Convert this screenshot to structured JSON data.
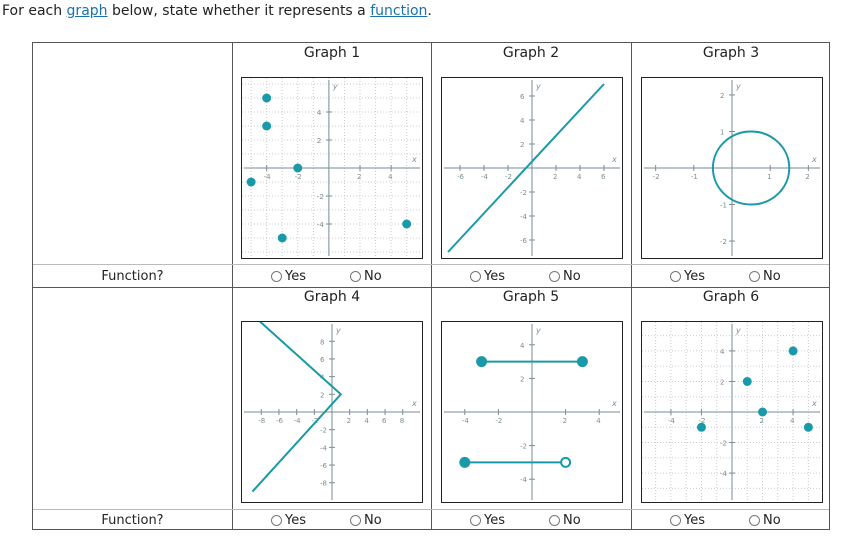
{
  "prompt": {
    "before": "For each ",
    "link1": "graph",
    "middle": " below, state whether it represents a ",
    "link2": "function",
    "after": "."
  },
  "row_label": "Function?",
  "yes_label": "Yes",
  "no_label": "No",
  "accent_color": "#1a9aa8",
  "graphs": [
    {
      "title": "Graph 1",
      "type": "scatter",
      "xticks": [
        "-4",
        "-2",
        "2",
        "4"
      ],
      "yticks": [
        "4",
        "2",
        "-2",
        "-4"
      ],
      "points": [
        [
          -4,
          5
        ],
        [
          -4,
          3
        ],
        [
          -2,
          0
        ],
        [
          -5,
          -1
        ],
        [
          -3,
          -5
        ],
        [
          5,
          -4
        ]
      ]
    },
    {
      "title": "Graph 2",
      "type": "line",
      "xticks": [
        "-6",
        "-4",
        "-2",
        "2",
        "4",
        "6"
      ],
      "yticks": [
        "6",
        "4",
        "2",
        "-2",
        "-4",
        "-6"
      ],
      "line": [
        [
          -7,
          -7
        ],
        [
          6,
          7
        ]
      ]
    },
    {
      "title": "Graph 3",
      "type": "circle",
      "xticks": [
        "-2",
        "-1",
        "1",
        "2"
      ],
      "yticks": [
        "2",
        "1",
        "-1",
        "-2"
      ],
      "circle": {
        "cx": 0.5,
        "cy": 0,
        "r": 1
      }
    },
    {
      "title": "Graph 4",
      "type": "polyline",
      "xticks": [
        "-8",
        "-6",
        "-4",
        "-2",
        "2",
        "4",
        "6",
        "8"
      ],
      "yticks": [
        "8",
        "6",
        "4",
        "2",
        "-2",
        "-4",
        "-6",
        "-8"
      ],
      "polyline": [
        [
          -9,
          11
        ],
        [
          1,
          2
        ],
        [
          -9,
          -9
        ]
      ]
    },
    {
      "title": "Graph 5",
      "type": "segments",
      "xticks": [
        "-4",
        "-2",
        "2",
        "4"
      ],
      "yticks": [
        "4",
        "2",
        "-2",
        "-4"
      ],
      "segments": [
        {
          "from": [
            -3,
            3
          ],
          "to": [
            3,
            3
          ],
          "from_closed": true,
          "to_closed": true
        },
        {
          "from": [
            -4,
            -3
          ],
          "to": [
            2,
            -3
          ],
          "from_closed": true,
          "to_closed": false
        }
      ]
    },
    {
      "title": "Graph 6",
      "type": "scatter",
      "xticks": [
        "-4",
        "-2",
        "2",
        "4"
      ],
      "yticks": [
        "4",
        "2",
        "-2",
        "-4"
      ],
      "points": [
        [
          -2,
          -1
        ],
        [
          1,
          2
        ],
        [
          2,
          0
        ],
        [
          4,
          4
        ],
        [
          5,
          -1
        ]
      ]
    }
  ]
}
